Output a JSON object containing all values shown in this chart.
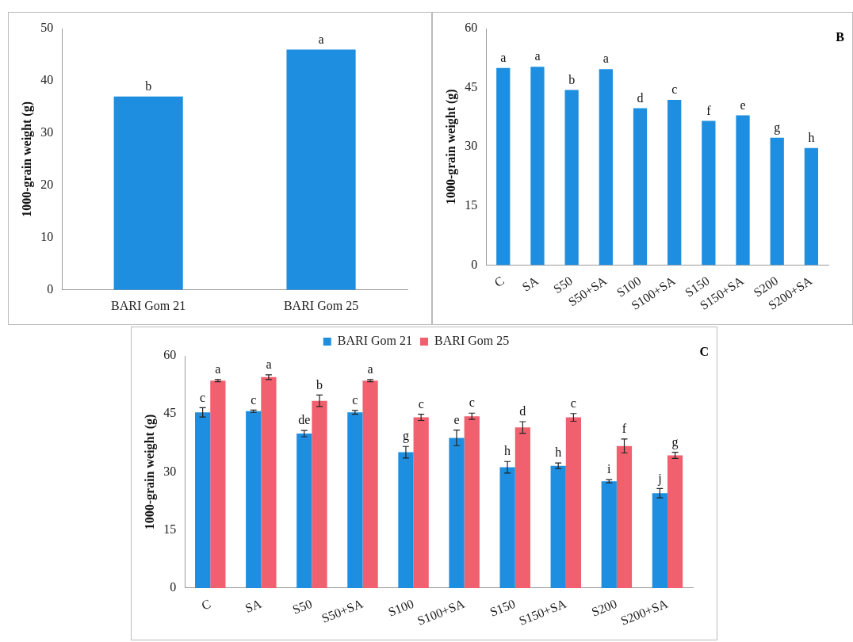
{
  "chart_data": [
    {
      "type": "bar",
      "ylabel": "1000-grain weight (g)",
      "categories": [
        "BARI Gom 21",
        "BARI Gom 25"
      ],
      "series": [
        {
          "color": "#1e8fe0",
          "values": [
            37,
            46
          ],
          "value_labels": [
            "b",
            "a"
          ]
        }
      ],
      "ylim": [
        0,
        50
      ],
      "yticks": [
        0,
        10,
        20,
        30,
        40,
        50
      ],
      "grid": false,
      "legend": false
    },
    {
      "type": "bar",
      "ylabel": "1000-grain weight (g)",
      "annotations": [
        "B"
      ],
      "categories": [
        "C",
        "SA",
        "S50",
        "S50+SA",
        "S100",
        "S100+SA",
        "S150",
        "S150+SA",
        "S200",
        "S200+SA"
      ],
      "series": [
        {
          "color": "#1e8fe0",
          "values": [
            50,
            50.3,
            44.4,
            49.7,
            39.8,
            41.9,
            36.6,
            38,
            32.3,
            29.7
          ],
          "value_labels": [
            "a",
            "a",
            "b",
            "a",
            "d",
            "c",
            "f",
            "e",
            "g",
            "h"
          ]
        }
      ],
      "ylim": [
        0,
        60
      ],
      "yticks": [
        0,
        15,
        30,
        45,
        60
      ],
      "grid": false,
      "legend": false
    },
    {
      "type": "bar",
      "ylabel": "1000-grain weight (g)",
      "annotations": [
        "C"
      ],
      "categories": [
        "C",
        "SA",
        "S50",
        "S50+SA",
        "S100",
        "S100+SA",
        "S150",
        "S150+SA",
        "S200",
        "S200+SA"
      ],
      "series": [
        {
          "name": "BARI Gom 21",
          "color": "#1e8fe0",
          "values": [
            45.4,
            45.7,
            39.9,
            45.4,
            35.1,
            38.8,
            31.2,
            31.6,
            27.6,
            24.5
          ],
          "errors": [
            1.2,
            0.3,
            0.8,
            0.5,
            1.5,
            2,
            1.5,
            0.7,
            0.4,
            1.2
          ],
          "value_labels": [
            "c",
            "c",
            "de",
            "c",
            "g",
            "e",
            "h",
            "h",
            "i",
            "j"
          ]
        },
        {
          "name": "BARI Gom 25",
          "color": "#f0606e",
          "values": [
            53.6,
            54.5,
            48.4,
            53.6,
            44.1,
            44.4,
            41.5,
            44.1,
            36.7,
            34.3
          ],
          "errors": [
            0.3,
            0.6,
            1.5,
            0.3,
            0.8,
            0.8,
            1.5,
            1,
            1.8,
            0.8
          ],
          "value_labels": [
            "a",
            "a",
            "b",
            "a",
            "c",
            "c",
            "d",
            "c",
            "f",
            "g"
          ]
        }
      ],
      "ylim": [
        0,
        60
      ],
      "yticks": [
        0,
        15,
        30,
        45,
        60
      ],
      "grid": false,
      "legend": "top"
    }
  ]
}
